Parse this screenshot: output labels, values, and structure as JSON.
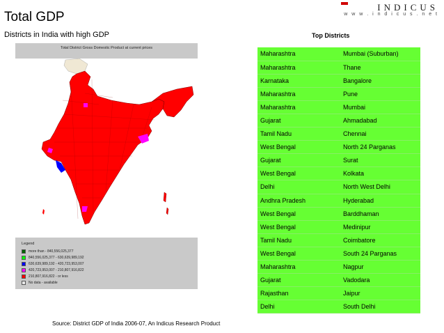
{
  "slide": {
    "title": "Total GDP",
    "subtitle": "Districts in India with high GDP",
    "source": "Source: District GDP of India 2006-07, An Indicus Research Product"
  },
  "brand": {
    "name": "INDICUS",
    "url": "w w w . i n d i c u s . n e t"
  },
  "map": {
    "header": "Total District Gross Domestic Product at current prices",
    "colors": {
      "dominant": "#ff0000",
      "blue": "#0000ff",
      "magenta": "#ff00ff",
      "no_data": "#f0e8d4"
    }
  },
  "legend": {
    "title": "Legend",
    "items": [
      {
        "label": "more than     - 840,556,025,377",
        "color": "#006400"
      },
      {
        "label": "840,556,025,377 - 630,639,989,192",
        "color": "#00ff00"
      },
      {
        "label": "630,639,989,192 - 420,723,953,007",
        "color": "#0000ff"
      },
      {
        "label": "420,723,953,007 - 210,807,916,822",
        "color": "#ff00ff"
      },
      {
        "label": "210,807,916,822     - or less",
        "color": "#ff0000"
      },
      {
        "label": "No data - available",
        "color": "#e6e6e6"
      }
    ]
  },
  "top_districts": {
    "title": "Top Districts",
    "rows": [
      {
        "state": "Maharashtra",
        "district": "Mumbai (Suburban)"
      },
      {
        "state": "Maharashtra",
        "district": "Thane"
      },
      {
        "state": "Karnataka",
        "district": "Bangalore"
      },
      {
        "state": "Maharashtra",
        "district": "Pune"
      },
      {
        "state": "Maharashtra",
        "district": "Mumbai"
      },
      {
        "state": "Gujarat",
        "district": "Ahmadabad"
      },
      {
        "state": "Tamil Nadu",
        "district": "Chennai"
      },
      {
        "state": "West Bengal",
        "district": "North 24 Parganas"
      },
      {
        "state": "Gujarat",
        "district": "Surat"
      },
      {
        "state": "West Bengal",
        "district": "Kolkata"
      },
      {
        "state": "Delhi",
        "district": "North West Delhi"
      },
      {
        "state": "Andhra Pradesh",
        "district": "Hyderabad"
      },
      {
        "state": "West Bengal",
        "district": "Barddhaman"
      },
      {
        "state": "West Bengal",
        "district": "Medinipur"
      },
      {
        "state": "Tamil Nadu",
        "district": "Coimbatore"
      },
      {
        "state": "West Bengal",
        "district": "South 24 Parganas"
      },
      {
        "state": "Maharashtra",
        "district": "Nagpur"
      },
      {
        "state": "Gujarat",
        "district": "Vadodara"
      },
      {
        "state": "Rajasthan",
        "district": "Jaipur"
      },
      {
        "state": "Delhi",
        "district": "South Delhi"
      }
    ],
    "bg_color": "#66ff33"
  }
}
